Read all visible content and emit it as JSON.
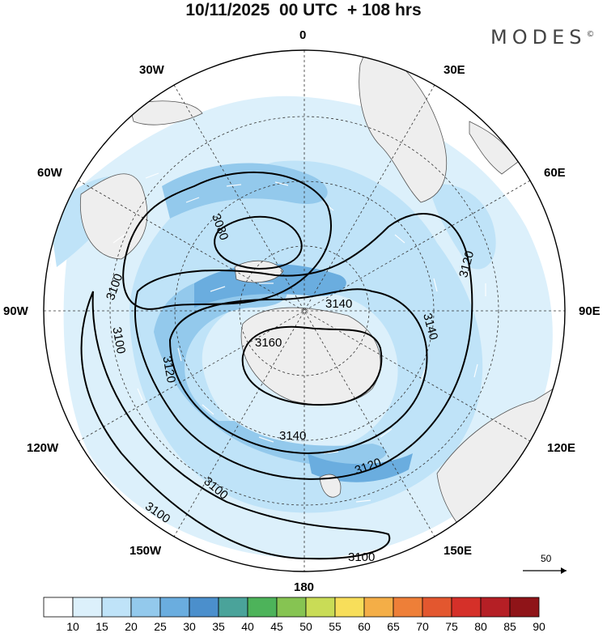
{
  "title": "10/11/2025  00 UTC  + 108 hrs",
  "brand": {
    "name": "MODES",
    "mark": "©"
  },
  "longitude_labels": {
    "n0": "0",
    "e30": "30E",
    "e60": "60E",
    "e90": "90E",
    "e120": "120E",
    "e150": "150E",
    "s180": "180",
    "w150": "150W",
    "w120": "120W",
    "w90": "90W",
    "w60": "60W",
    "w30": "30W"
  },
  "contour_labels": {
    "c3080": "3080",
    "c3100a": "3100",
    "c3100b": "3100",
    "c3100c": "3100",
    "c3100d": "3100",
    "c3100e": "3100",
    "c3120a": "3120",
    "c3120b": "3120",
    "c3120c": "3120",
    "c3140a": "3140",
    "c3140b": "3140",
    "c3140c": "3140",
    "c3160": "3160"
  },
  "wind_reference": {
    "value": "50"
  },
  "colorbar": {
    "labels": [
      "10",
      "15",
      "20",
      "25",
      "30",
      "35",
      "40",
      "45",
      "50",
      "55",
      "60",
      "65",
      "70",
      "75",
      "80",
      "85",
      "90"
    ],
    "colors": [
      "#ffffff",
      "#dcf0fb",
      "#bfe3f8",
      "#93c9ec",
      "#6aaddf",
      "#4b8fcc",
      "#4aa39a",
      "#4db35a",
      "#86c452",
      "#c9dc56",
      "#f7de5a",
      "#f4ae47",
      "#ee7f38",
      "#e3572f",
      "#d53029",
      "#b51f25",
      "#8f1418"
    ]
  },
  "colors": {
    "contour": "#000000",
    "land": "#eeeeee",
    "grid": "#333333"
  }
}
